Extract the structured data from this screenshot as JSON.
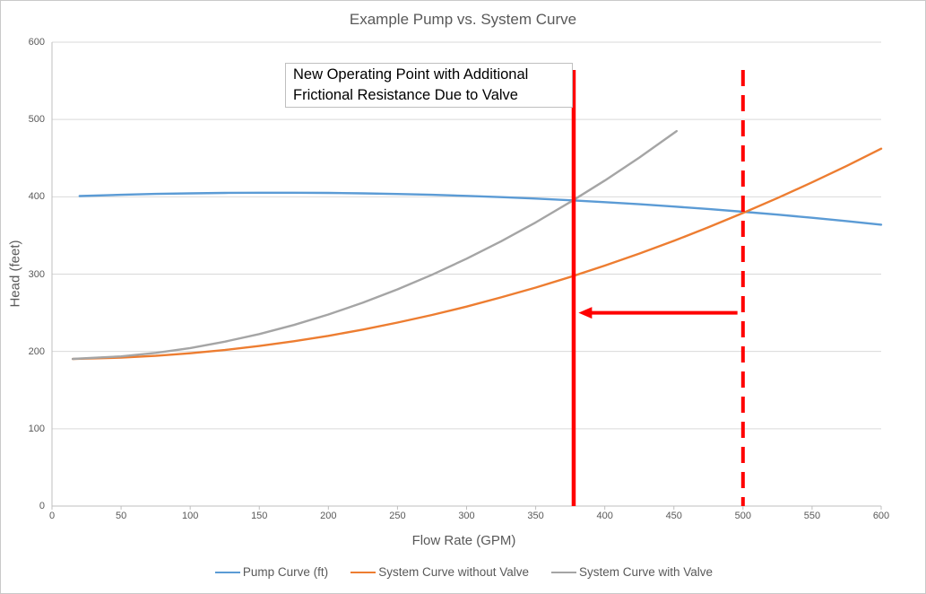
{
  "title": "Example Pump vs. System Curve",
  "colors": {
    "blue": "#5B9BD5",
    "orange": "#ED7D31",
    "gray": "#A5A5A5",
    "red": "#FF0000",
    "gridline": "#D9D9D9",
    "axis": "#BFBFBF",
    "text": "#595959",
    "frame_border": "#C9C9C9",
    "annotation_border": "#BFBFBF"
  },
  "chart_data": {
    "type": "line",
    "title": "Example Pump vs. System Curve",
    "xlabel": "Flow Rate (GPM)",
    "ylabel": "Head (feet)",
    "xlim": [
      0,
      600
    ],
    "ylim": [
      0,
      600
    ],
    "x_ticks": [
      0,
      50,
      100,
      150,
      200,
      250,
      300,
      350,
      400,
      450,
      500,
      550,
      600
    ],
    "y_ticks": [
      0,
      100,
      200,
      300,
      400,
      500,
      600
    ],
    "grid": "horizontal",
    "legend_position": "bottom",
    "series": [
      {
        "name": "Pump Curve (ft)",
        "color": "#5B9BD5",
        "x": [
          20,
          50,
          75,
          100,
          125,
          150,
          175,
          200,
          225,
          250,
          275,
          300,
          325,
          350,
          375,
          400,
          425,
          450,
          475,
          500,
          525,
          550,
          575,
          600
        ],
        "y": [
          401.0,
          402.6,
          403.7,
          404.5,
          405.0,
          405.3,
          405.3,
          405.0,
          404.4,
          403.6,
          402.6,
          401.2,
          399.6,
          397.7,
          395.5,
          393.1,
          390.4,
          387.4,
          384.2,
          380.7,
          376.9,
          372.9,
          368.6,
          364.0
        ]
      },
      {
        "name": "System Curve without Valve",
        "color": "#ED7D31",
        "x": [
          15,
          50,
          75,
          100,
          125,
          150,
          175,
          200,
          225,
          250,
          275,
          300,
          325,
          350,
          375,
          400,
          425,
          450,
          475,
          500,
          525,
          550,
          575,
          600
        ],
        "y": [
          190.2,
          191.9,
          194.3,
          197.6,
          201.8,
          207.0,
          213.2,
          220.2,
          228.3,
          237.3,
          247.2,
          258.0,
          269.9,
          282.6,
          296.3,
          311.0,
          326.6,
          343.1,
          360.6,
          379.0,
          398.4,
          418.7,
          440.0,
          462.2
        ]
      },
      {
        "name": "System Curve with Valve",
        "color": "#A5A5A5",
        "x": [
          15,
          50,
          75,
          100,
          125,
          150,
          175,
          200,
          225,
          250,
          275,
          300,
          325,
          350,
          375,
          400,
          425,
          452
        ],
        "y": [
          190.3,
          193.6,
          198.1,
          204.4,
          212.6,
          222.5,
          234.2,
          247.8,
          263.1,
          280.3,
          299.2,
          320.0,
          342.5,
          366.9,
          393.2,
          421.0,
          450.8,
          485.0
        ]
      }
    ],
    "annotations": {
      "callout_lines": [
        "New Operating Point with Additional",
        "Frictional Resistance Due to Valve"
      ],
      "vline_solid": {
        "x": 377.5,
        "y_top": 564,
        "style": "solid",
        "color": "#FF0000"
      },
      "vline_dashed": {
        "x": 500,
        "y_top": 564,
        "style": "dashed",
        "color": "#FF0000"
      },
      "arrow": {
        "y": 250,
        "x_from": 496,
        "x_to": 381,
        "color": "#FF0000"
      },
      "operating_points": {
        "new_operating_point": {
          "x": 377.5,
          "y": 395
        },
        "old_operating_point": {
          "x": 500,
          "y": 380
        }
      }
    }
  }
}
